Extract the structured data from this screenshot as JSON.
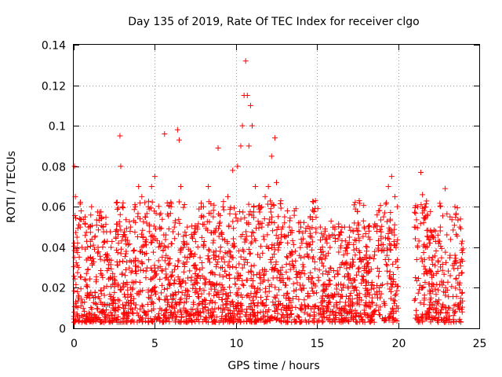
{
  "chart_data": {
    "type": "scatter",
    "title": "Day 135 of 2019, Rate Of TEC Index for receiver clgo",
    "xlabel": "GPS time / hours",
    "ylabel": "ROTI / TECUs",
    "xlim": [
      0,
      25
    ],
    "ylim": [
      0,
      0.14
    ],
    "xticks": [
      0,
      5,
      10,
      15,
      20,
      25
    ],
    "yticks": [
      0,
      0.02,
      0.04,
      0.06,
      0.08,
      0.1,
      0.12,
      0.14
    ],
    "xtick_labels": [
      "0",
      "5",
      "10",
      "15",
      "20",
      "25"
    ],
    "ytick_labels": [
      "0",
      "0.02",
      "0.04",
      "0.06",
      "0.08",
      "0.1",
      "0.12",
      "0.14"
    ],
    "grid": true,
    "marker": "+",
    "color": "#ff0000",
    "data_gap_hours": [
      20.0,
      21.0
    ],
    "series": [
      {
        "name": "ROTI",
        "x": [
          0.05,
          0.1,
          0.2,
          0.3,
          0.4,
          0.5,
          0.7,
          0.9,
          1.1,
          1.3,
          1.5,
          1.7,
          1.8,
          2.0,
          2.3,
          2.6,
          2.85,
          2.9,
          3.0,
          3.2,
          3.5,
          3.8,
          4.0,
          4.2,
          4.4,
          4.6,
          4.8,
          5.0,
          5.3,
          5.6,
          6.0,
          6.2,
          6.4,
          6.5,
          6.6,
          7.0,
          7.3,
          7.6,
          8.0,
          8.3,
          8.6,
          8.9,
          9.2,
          9.5,
          9.8,
          10.1,
          10.3,
          10.4,
          10.5,
          10.6,
          10.7,
          10.8,
          10.9,
          11.0,
          11.2,
          11.4,
          11.6,
          11.8,
          12.0,
          12.2,
          12.4,
          12.5,
          12.6,
          12.8,
          13.0,
          13.3,
          13.6,
          14.0,
          14.3,
          14.6,
          14.9,
          15.2,
          15.5,
          15.8,
          16.1,
          16.4,
          16.7,
          17.0,
          17.3,
          17.6,
          17.9,
          18.2,
          18.5,
          18.8,
          19.1,
          19.4,
          19.6,
          19.8,
          19.95,
          21.0,
          21.2,
          21.4,
          21.5,
          21.7,
          22.0,
          22.3,
          22.6,
          22.9,
          23.2,
          23.5,
          23.8,
          23.95
        ],
        "y": [
          0.08,
          0.065,
          0.045,
          0.03,
          0.05,
          0.04,
          0.055,
          0.05,
          0.06,
          0.045,
          0.04,
          0.055,
          0.05,
          0.035,
          0.04,
          0.045,
          0.095,
          0.08,
          0.06,
          0.045,
          0.05,
          0.06,
          0.07,
          0.065,
          0.055,
          0.06,
          0.07,
          0.075,
          0.05,
          0.096,
          0.06,
          0.05,
          0.098,
          0.093,
          0.07,
          0.05,
          0.045,
          0.05,
          0.06,
          0.07,
          0.055,
          0.089,
          0.06,
          0.065,
          0.078,
          0.08,
          0.09,
          0.1,
          0.115,
          0.132,
          0.115,
          0.09,
          0.11,
          0.1,
          0.07,
          0.06,
          0.05,
          0.065,
          0.07,
          0.085,
          0.094,
          0.072,
          0.05,
          0.045,
          0.055,
          0.05,
          0.058,
          0.05,
          0.048,
          0.045,
          0.063,
          0.05,
          0.048,
          0.045,
          0.05,
          0.046,
          0.05,
          0.045,
          0.052,
          0.063,
          0.05,
          0.048,
          0.05,
          0.058,
          0.055,
          0.07,
          0.075,
          0.065,
          0.06,
          0.05,
          0.06,
          0.077,
          0.066,
          0.055,
          0.045,
          0.048,
          0.05,
          0.069,
          0.055,
          0.06,
          0.05,
          0.043
        ]
      }
    ]
  }
}
